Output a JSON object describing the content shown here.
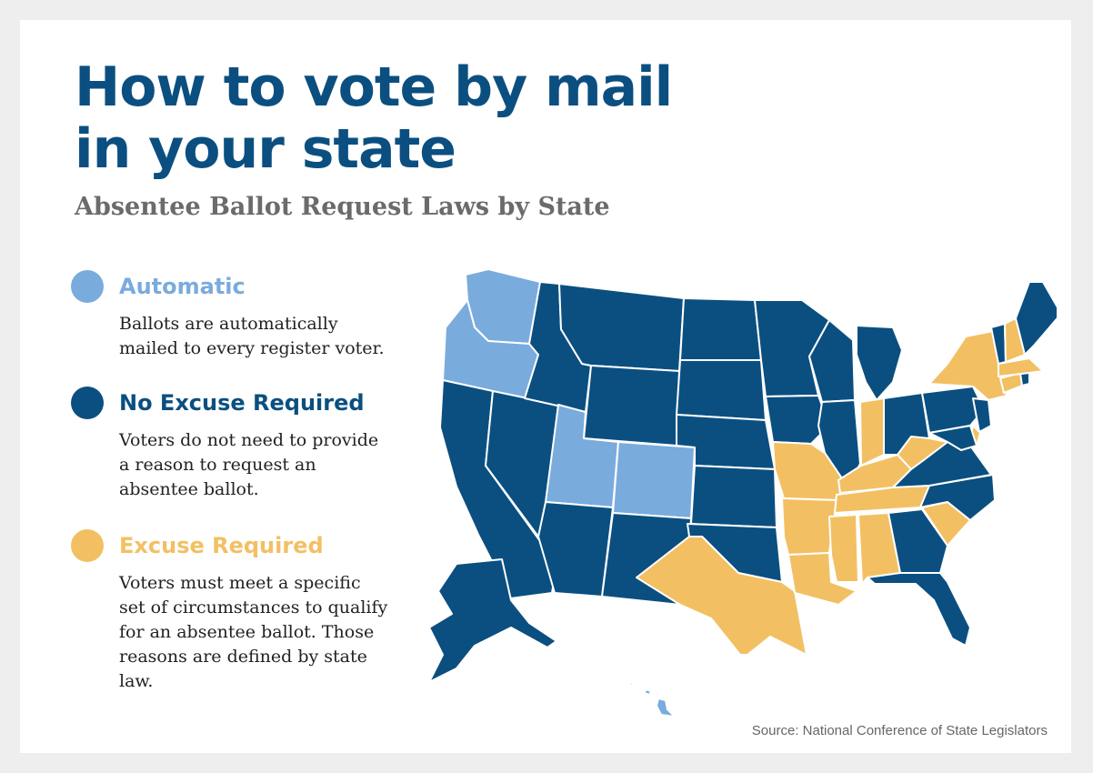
{
  "title": "How to vote by mail in your state",
  "subtitle": "Absentee Ballot Request Laws by State",
  "legend": [
    {
      "title": "Automatic",
      "description": "Ballots are automatically mailed to every register voter.",
      "color": "#7aabdd"
    },
    {
      "title": "No Excuse Required",
      "description": "Voters do not need to provide a reason to request an absentee ballot.",
      "color": "#0b4f80"
    },
    {
      "title": "Excuse Required",
      "description": "Voters must meet a specific set of circumstances to qualify for an absentee ballot. Those reasons are defined by state law.",
      "color": "#f2c063"
    }
  ],
  "categories": {
    "automatic": [
      "WA",
      "OR",
      "UT",
      "CO",
      "HI"
    ],
    "excuse_required": [
      "TX",
      "MO",
      "AR",
      "LA",
      "MS",
      "AL",
      "TN",
      "KY",
      "IN",
      "WV",
      "SC",
      "NY",
      "CT",
      "MA",
      "NH",
      "DE"
    ],
    "no_excuse_required": [
      "CA",
      "NV",
      "ID",
      "MT",
      "WY",
      "ND",
      "SD",
      "NE",
      "KS",
      "OK",
      "NM",
      "AZ",
      "MN",
      "IA",
      "WI",
      "IL",
      "MI",
      "OH",
      "PA",
      "VA",
      "NC",
      "GA",
      "FL",
      "ME",
      "VT",
      "NJ",
      "MD",
      "RI",
      "AK"
    ]
  },
  "source": "Source: National Conference of State Legislators"
}
